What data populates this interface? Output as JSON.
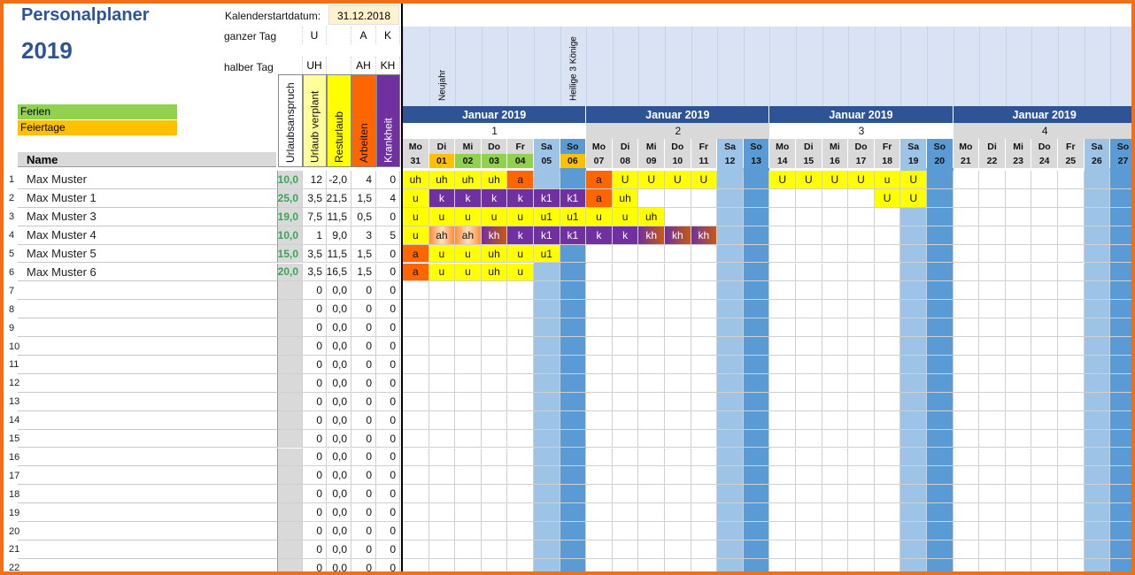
{
  "title_line1": "Personalplaner",
  "title_line2": "2019",
  "calendar_start_label": "Kalenderstartdatum:",
  "calendar_start_value": "31.12.2018",
  "full_day_label": "ganzer Tag",
  "half_day_label": "halber Tag",
  "legend": {
    "full": [
      "",
      "U",
      "",
      "A",
      "K"
    ],
    "half": [
      "",
      "UH",
      "",
      "AH",
      "KH"
    ],
    "ferien": "Ferien",
    "feiertage": "Feiertage"
  },
  "col_headers": [
    "Urlaubsanspruch",
    "Urlaub verplant",
    "Resturlaub",
    "Arbeiten",
    "Krankheit"
  ],
  "name_header": "Name",
  "holidays": [
    {
      "day_index": 1,
      "text": "Neujahr"
    },
    {
      "day_index": 6,
      "text": "Heilige 3 Könige"
    }
  ],
  "weeks": [
    {
      "month": "Januar 2019",
      "week": "1"
    },
    {
      "month": "Januar 2019",
      "week": "2"
    },
    {
      "month": "Januar 2019",
      "week": "3"
    },
    {
      "month": "Januar 2019",
      "week": "4"
    }
  ],
  "days": [
    {
      "wd": "Mo",
      "d": "31"
    },
    {
      "wd": "Di",
      "d": "01"
    },
    {
      "wd": "Mi",
      "d": "02"
    },
    {
      "wd": "Do",
      "d": "03"
    },
    {
      "wd": "Fr",
      "d": "04"
    },
    {
      "wd": "Sa",
      "d": "05"
    },
    {
      "wd": "So",
      "d": "06"
    },
    {
      "wd": "Mo",
      "d": "07"
    },
    {
      "wd": "Di",
      "d": "08"
    },
    {
      "wd": "Mi",
      "d": "09"
    },
    {
      "wd": "Do",
      "d": "10"
    },
    {
      "wd": "Fr",
      "d": "11"
    },
    {
      "wd": "Sa",
      "d": "12"
    },
    {
      "wd": "So",
      "d": "13"
    },
    {
      "wd": "Mo",
      "d": "14"
    },
    {
      "wd": "Di",
      "d": "15"
    },
    {
      "wd": "Mi",
      "d": "16"
    },
    {
      "wd": "Do",
      "d": "17"
    },
    {
      "wd": "Fr",
      "d": "18"
    },
    {
      "wd": "Sa",
      "d": "19"
    },
    {
      "wd": "So",
      "d": "20"
    },
    {
      "wd": "Mo",
      "d": "21"
    },
    {
      "wd": "Di",
      "d": "22"
    },
    {
      "wd": "Mi",
      "d": "23"
    },
    {
      "wd": "Do",
      "d": "24"
    },
    {
      "wd": "Fr",
      "d": "25"
    },
    {
      "wd": "Sa",
      "d": "26"
    },
    {
      "wd": "So",
      "d": "27"
    }
  ],
  "employees": [
    {
      "no": "1",
      "name": "Max Muster",
      "anspruch": "10,0",
      "verplant": "12",
      "rest": "-2,0",
      "arbeit": "4",
      "krank": "0",
      "cells": [
        "uh",
        "uh",
        "uh",
        "uh",
        "a",
        "",
        "",
        "a",
        "U",
        "U",
        "U",
        "U",
        "",
        "",
        "U",
        "U",
        "U",
        "U",
        "u",
        "U",
        "",
        "",
        "",
        "",
        "",
        "",
        "",
        ""
      ]
    },
    {
      "no": "2",
      "name": "Max Muster 1",
      "anspruch": "25,0",
      "verplant": "3,5",
      "rest": "21,5",
      "arbeit": "1,5",
      "krank": "4",
      "cells": [
        "u",
        "k",
        "k",
        "k",
        "k",
        "k1",
        "k1",
        "a",
        "uh",
        "",
        "",
        "",
        "",
        "",
        "",
        "",
        "",
        "",
        "U",
        "U",
        "",
        "",
        "",
        "",
        "",
        "",
        "",
        ""
      ]
    },
    {
      "no": "3",
      "name": "Max Muster 3",
      "anspruch": "19,0",
      "verplant": "7,5",
      "rest": "11,5",
      "arbeit": "0,5",
      "krank": "0",
      "cells": [
        "u",
        "u",
        "u",
        "u",
        "u",
        "u1",
        "u1",
        "u",
        "u",
        "uh",
        "",
        "",
        "",
        "",
        "",
        "",
        "",
        "",
        "",
        "",
        "",
        "",
        "",
        "",
        "",
        "",
        "",
        ""
      ]
    },
    {
      "no": "4",
      "name": "Max Muster 4",
      "anspruch": "10,0",
      "verplant": "1",
      "rest": "9,0",
      "arbeit": "3",
      "krank": "5",
      "cells": [
        "u",
        "ah",
        "ah",
        "kh",
        "k",
        "k1",
        "k1",
        "k",
        "k",
        "kh",
        "kh",
        "kh",
        "",
        "",
        "",
        "",
        "",
        "",
        "",
        "",
        "",
        "",
        "",
        "",
        "",
        "",
        "",
        ""
      ]
    },
    {
      "no": "5",
      "name": "Max Muster 5",
      "anspruch": "15,0",
      "verplant": "3,5",
      "rest": "11,5",
      "arbeit": "1,5",
      "krank": "0",
      "cells": [
        "a",
        "u",
        "u",
        "uh",
        "u",
        "u1",
        "",
        "",
        "",
        "",
        "",
        "",
        "",
        "",
        "",
        "",
        "",
        "",
        "",
        "",
        "",
        "",
        "",
        "",
        "",
        "",
        "",
        ""
      ]
    },
    {
      "no": "6",
      "name": "Max Muster 6",
      "anspruch": "20,0",
      "verplant": "3,5",
      "rest": "16,5",
      "arbeit": "1,5",
      "krank": "0",
      "cells": [
        "a",
        "u",
        "u",
        "uh",
        "u",
        "",
        "",
        "",
        "",
        "",
        "",
        "",
        "",
        "",
        "",
        "",
        "",
        "",
        "",
        "",
        "",
        "",
        "",
        "",
        "",
        "",
        "",
        ""
      ]
    }
  ],
  "empty_rows": [
    "7",
    "8",
    "9",
    "10",
    "11",
    "12",
    "13",
    "14",
    "15",
    "16",
    "17",
    "18",
    "19",
    "20",
    "21",
    "22"
  ],
  "empty_values": {
    "verplant": "0",
    "rest": "0,0",
    "arbeit": "0",
    "krank": "0"
  },
  "colors": {
    "accent": "#2f5496",
    "ferien": "#92d050",
    "feiertage": "#ffc000",
    "urlaub": "#ffff00",
    "arbeit": "#ff6600",
    "krank": "#7030a0",
    "sa": "#9dc3e6",
    "so": "#5b9bd5",
    "header_light": "#dae3f3"
  }
}
